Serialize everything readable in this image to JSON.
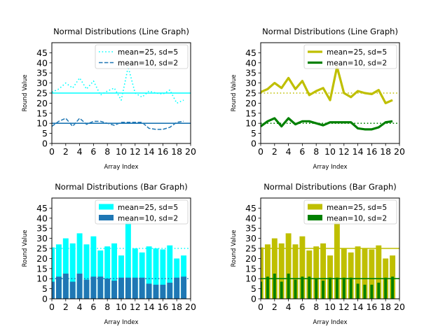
{
  "chart_data": [
    {
      "type": "line",
      "title": "Normal Distributions (Line Graph)",
      "xlabel": "Array Index",
      "ylabel": "Round Value",
      "xlim": [
        0,
        20
      ],
      "ylim": [
        0,
        50
      ],
      "xticks": [
        "0",
        "2",
        "4",
        "6",
        "8",
        "10",
        "12",
        "14",
        "16",
        "18",
        "20"
      ],
      "yticks": [
        "0",
        "5",
        "10",
        "15",
        "20",
        "25",
        "30",
        "35",
        "40",
        "45"
      ],
      "legend_position": "top-right",
      "grid": false,
      "x": [
        0,
        1,
        2,
        3,
        4,
        5,
        6,
        7,
        8,
        9,
        10,
        11,
        12,
        13,
        14,
        15,
        16,
        17,
        18,
        19
      ],
      "series": [
        {
          "name": "mean=25, sd=5",
          "color": "#00ffff",
          "style": "dotted",
          "values": [
            25.5,
            27,
            30,
            27.5,
            32.5,
            27,
            31,
            24,
            26,
            27.5,
            21.5,
            38,
            25,
            23,
            26,
            25,
            24.5,
            26.5,
            20,
            21.5
          ],
          "mean_line": 25,
          "mean_line_style": "solid",
          "mean_line_color": "#00ffff"
        },
        {
          "name": "mean=10, sd=2",
          "color": "#1f77b4",
          "style": "dashed",
          "values": [
            8.5,
            11,
            12.5,
            8.5,
            12.5,
            9.5,
            11,
            11,
            10,
            9,
            10.5,
            10.5,
            10.5,
            10.5,
            7.5,
            7,
            7,
            8,
            10.5,
            11
          ],
          "mean_line": 10,
          "mean_line_style": "solid",
          "mean_line_color": "#1f77b4"
        }
      ]
    },
    {
      "type": "line",
      "title": "Normal Distributions (Line Graph)",
      "xlabel": "Array Index",
      "ylabel": "Round Value",
      "xlim": [
        0,
        20
      ],
      "ylim": [
        0,
        50
      ],
      "xticks": [
        "0",
        "2",
        "4",
        "6",
        "8",
        "10",
        "12",
        "14",
        "16",
        "18",
        "20"
      ],
      "yticks": [
        "0",
        "5",
        "10",
        "15",
        "20",
        "25",
        "30",
        "35",
        "40",
        "45"
      ],
      "legend_position": "top-right",
      "grid": false,
      "x": [
        0,
        1,
        2,
        3,
        4,
        5,
        6,
        7,
        8,
        9,
        10,
        11,
        12,
        13,
        14,
        15,
        16,
        17,
        18,
        19
      ],
      "series": [
        {
          "name": "mean=25, sd=5",
          "color": "#bfbf00",
          "style": "thick",
          "values": [
            25.5,
            27,
            30,
            27.5,
            32.5,
            27,
            31,
            24,
            26,
            27.5,
            21.5,
            38,
            25,
            23,
            26,
            25,
            24.5,
            26.5,
            20,
            21.5
          ],
          "mean_line": 25,
          "mean_line_style": "dotted",
          "mean_line_color": "#bfbf00"
        },
        {
          "name": "mean=10, sd=2",
          "color": "#008000",
          "style": "thick",
          "values": [
            8.5,
            11,
            12.5,
            8.5,
            12.5,
            9.5,
            11,
            11,
            10,
            9,
            10.5,
            10.5,
            10.5,
            10.5,
            7.5,
            7,
            7,
            8,
            10.5,
            11
          ],
          "mean_line": 10,
          "mean_line_style": "dotted",
          "mean_line_color": "#008000"
        }
      ]
    },
    {
      "type": "bar",
      "title": "Normal Distributions (Bar Graph)",
      "xlabel": "Array Index",
      "ylabel": "Round Value",
      "xlim": [
        0,
        20
      ],
      "ylim": [
        0,
        50
      ],
      "xticks": [
        "0",
        "2",
        "4",
        "6",
        "8",
        "10",
        "12",
        "14",
        "16",
        "18",
        "20"
      ],
      "yticks": [
        "0",
        "5",
        "10",
        "15",
        "20",
        "25",
        "30",
        "35",
        "40",
        "45"
      ],
      "legend_position": "top-right",
      "grid": false,
      "x": [
        0,
        1,
        2,
        3,
        4,
        5,
        6,
        7,
        8,
        9,
        10,
        11,
        12,
        13,
        14,
        15,
        16,
        17,
        18,
        19
      ],
      "series": [
        {
          "name": "mean=25, sd=5",
          "color": "#00ffff",
          "bar_width": 0.8,
          "values": [
            25.5,
            27,
            30,
            27.5,
            32.5,
            27,
            31,
            24,
            26,
            27.5,
            21.5,
            38,
            25,
            23,
            26,
            25,
            24.5,
            26.5,
            20,
            21.5
          ],
          "mean_line": 25,
          "mean_line_style": "dotted",
          "mean_line_color": "#00ffff"
        },
        {
          "name": "mean=10, sd=2",
          "color": "#1f77b4",
          "bar_width": 0.8,
          "values": [
            8.5,
            11,
            12.5,
            8.5,
            12.5,
            9.5,
            11,
            11,
            10,
            9,
            10.5,
            10.5,
            10.5,
            10.5,
            7.5,
            7,
            7,
            8,
            10.5,
            11
          ],
          "mean_line": 10,
          "mean_line_style": "dotted",
          "mean_line_color": "#1f77b4"
        }
      ]
    },
    {
      "type": "bar",
      "title": "Normal Distributions (Bar Graph)",
      "xlabel": "Array Index",
      "ylabel": "Round Value",
      "xlim": [
        0,
        20
      ],
      "ylim": [
        0,
        50
      ],
      "xticks": [
        "0",
        "2",
        "4",
        "6",
        "8",
        "10",
        "12",
        "14",
        "16",
        "18",
        "20"
      ],
      "yticks": [
        "0",
        "5",
        "10",
        "15",
        "20",
        "25",
        "30",
        "35",
        "40",
        "45"
      ],
      "legend_position": "top-right",
      "grid": false,
      "x": [
        0,
        1,
        2,
        3,
        4,
        5,
        6,
        7,
        8,
        9,
        10,
        11,
        12,
        13,
        14,
        15,
        16,
        17,
        18,
        19
      ],
      "series": [
        {
          "name": "mean=25, sd=5",
          "color": "#bfbf00",
          "bar_width": 0.8,
          "values": [
            25.5,
            27,
            30,
            27.5,
            32.5,
            27,
            31,
            24,
            26,
            27.5,
            21.5,
            38,
            25,
            23,
            26,
            25,
            24.5,
            26.5,
            20,
            21.5
          ],
          "mean_line": 25,
          "mean_line_style": "solid",
          "mean_line_color": "#bfbf00"
        },
        {
          "name": "mean=10, sd=2",
          "color": "#008000",
          "bar_width": 0.4,
          "values": [
            8.5,
            11,
            12.5,
            8.5,
            12.5,
            9.5,
            11,
            11,
            10,
            9,
            10.5,
            10.5,
            10.5,
            10.5,
            7.5,
            7,
            7,
            8,
            10.5,
            11
          ],
          "mean_line": 10,
          "mean_line_style": "solid",
          "mean_line_color": "#008000"
        }
      ]
    }
  ]
}
